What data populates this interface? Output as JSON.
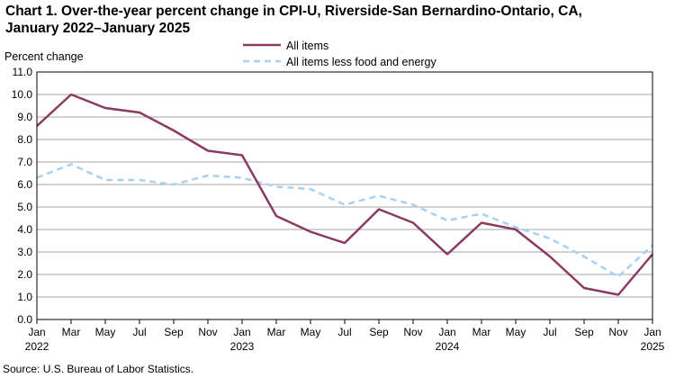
{
  "title_line1": "Chart 1. Over-the-year percent change in CPI-U, Riverside-San Bernardino-Ontario, CA,",
  "title_line2": "January 2022–January 2025",
  "source": "Source: U.S. Bureau of Labor Statistics.",
  "chart_data": {
    "type": "line",
    "title": "Over-the-year percent change in CPI-U, Riverside-San Bernardino-Ontario, CA, January 2022–January 2025",
    "ylabel": "Percent change",
    "xlabel": "",
    "ylim": [
      0,
      11
    ],
    "yticks": [
      0,
      1,
      2,
      3,
      4,
      5,
      6,
      7,
      8,
      9,
      10,
      11
    ],
    "ytick_labels": [
      "0.0",
      "1.0",
      "2.0",
      "3.0",
      "4.0",
      "5.0",
      "6.0",
      "7.0",
      "8.0",
      "9.0",
      "10.0",
      "11.0"
    ],
    "x": [
      "Jan 2022",
      "Mar 2022",
      "May 2022",
      "Jul 2022",
      "Sep 2022",
      "Nov 2022",
      "Jan 2023",
      "Mar 2023",
      "May 2023",
      "Jul 2023",
      "Sep 2023",
      "Nov 2023",
      "Jan 2024",
      "Mar 2024",
      "May 2024",
      "Jul 2024",
      "Sep 2024",
      "Nov 2024",
      "Jan 2025"
    ],
    "xtick_labels": [
      {
        "month": "Jan",
        "year": "2022"
      },
      {
        "month": "Mar",
        "year": ""
      },
      {
        "month": "May",
        "year": ""
      },
      {
        "month": "Jul",
        "year": ""
      },
      {
        "month": "Sep",
        "year": ""
      },
      {
        "month": "Nov",
        "year": ""
      },
      {
        "month": "Jan",
        "year": "2023"
      },
      {
        "month": "Mar",
        "year": ""
      },
      {
        "month": "May",
        "year": ""
      },
      {
        "month": "Jul",
        "year": ""
      },
      {
        "month": "Sep",
        "year": ""
      },
      {
        "month": "Nov",
        "year": ""
      },
      {
        "month": "Jan",
        "year": "2024"
      },
      {
        "month": "Mar",
        "year": ""
      },
      {
        "month": "May",
        "year": ""
      },
      {
        "month": "Jul",
        "year": ""
      },
      {
        "month": "Sep",
        "year": ""
      },
      {
        "month": "Nov",
        "year": ""
      },
      {
        "month": "Jan",
        "year": "2025"
      }
    ],
    "grid": true,
    "legend_position": "top-center",
    "series": [
      {
        "name": "All items",
        "color": "#8b3a62",
        "style": "solid",
        "values": [
          8.6,
          10.0,
          9.4,
          9.2,
          8.4,
          7.5,
          7.3,
          4.6,
          3.9,
          3.4,
          4.9,
          4.3,
          2.9,
          4.3,
          4.0,
          2.8,
          1.4,
          1.1,
          2.9
        ]
      },
      {
        "name": "All items less food and energy",
        "color": "#a8d0f0",
        "style": "dashed",
        "values": [
          6.3,
          6.9,
          6.2,
          6.2,
          6.0,
          6.4,
          6.3,
          5.9,
          5.8,
          5.1,
          5.5,
          5.1,
          4.4,
          4.7,
          4.1,
          3.6,
          2.8,
          1.9,
          3.3
        ]
      }
    ]
  }
}
